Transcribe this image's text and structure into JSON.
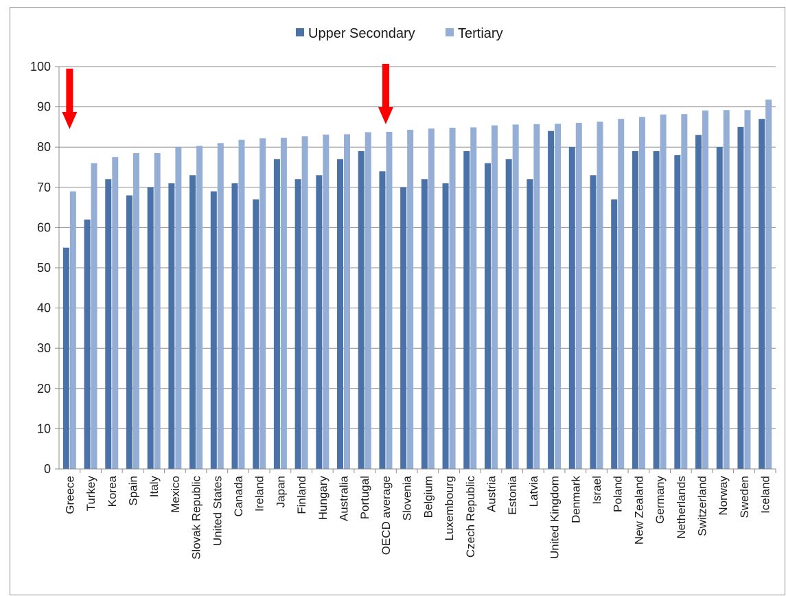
{
  "chart_data": {
    "type": "bar",
    "title": "",
    "xlabel": "",
    "ylabel": "",
    "ylim": [
      0,
      100
    ],
    "yticks": [
      0,
      10,
      20,
      30,
      40,
      50,
      60,
      70,
      80,
      90,
      100
    ],
    "grid": true,
    "legend": "top-center",
    "colors": {
      "Upper Secondary": "#4a72a8",
      "Tertiary": "#94aed6",
      "arrow": "#ff0000"
    },
    "categories": [
      "Greece",
      "Turkey",
      "Korea",
      "Spain",
      "Italy",
      "Mexico",
      "Slovak Republic",
      "United States",
      "Canada",
      "Ireland",
      "Japan",
      "Finland",
      "Hungary",
      "Australia",
      "Portugal",
      "OECD average",
      "Slovenia",
      "Belgium",
      "Luxembourg",
      "Czech Republic",
      "Austria",
      "Estonia",
      "Latvia",
      "United Kingdom",
      "Denmark",
      "Israel",
      "Poland",
      "New Zealand",
      "Germany",
      "Netherlands",
      "Switzerland",
      "Norway",
      "Sweden",
      "Iceland"
    ],
    "series": [
      {
        "name": "Upper Secondary",
        "values": [
          55,
          62,
          72,
          68,
          70,
          71,
          73,
          69,
          71,
          67,
          77,
          72,
          73,
          77,
          79,
          74,
          70,
          72,
          71,
          79,
          76,
          77,
          72,
          84,
          80,
          73,
          67,
          79,
          79,
          78,
          83,
          80,
          85,
          87
        ]
      },
      {
        "name": "Tertiary",
        "values": [
          69,
          76,
          77.5,
          78.5,
          78.5,
          80,
          80.3,
          81,
          81.8,
          82.2,
          82.3,
          82.7,
          83.1,
          83.2,
          83.7,
          83.8,
          84.3,
          84.6,
          84.8,
          84.9,
          85.4,
          85.6,
          85.7,
          85.8,
          86,
          86.3,
          87,
          87.5,
          88.1,
          88.2,
          89.1,
          89.2,
          89.2,
          91.8
        ]
      }
    ],
    "annotations": [
      {
        "type": "arrow",
        "target": "Greece",
        "direction": "down"
      },
      {
        "type": "arrow",
        "target": "OECD average",
        "direction": "down"
      }
    ]
  }
}
